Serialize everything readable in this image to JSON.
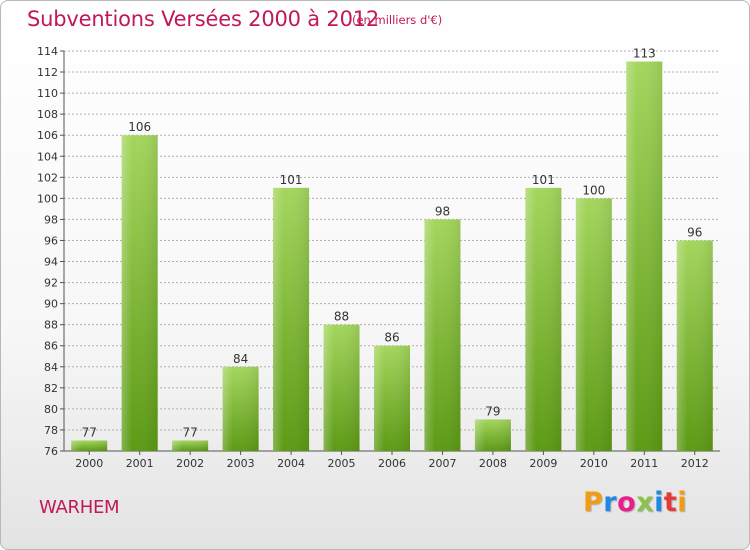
{
  "title": "Subventions Versées 2000 à 2012",
  "subtitle": "(en milliers d'€)",
  "commune": "WARHEM",
  "logo": {
    "letters": [
      "P",
      "r",
      "o",
      "x",
      "i",
      "t",
      "i"
    ],
    "colors": [
      "#f39c12",
      "#1e88e5",
      "#e91e8c",
      "#8bc34a",
      "#1e88e5",
      "#e53935",
      "#f39c12"
    ]
  },
  "colors": {
    "accent": "#c2185b",
    "bar_light": "#a4d65e",
    "bar_dark": "#5c9a14",
    "grid": "#b0b0b0"
  },
  "chart_data": {
    "type": "bar",
    "categories": [
      "2000",
      "2001",
      "2002",
      "2003",
      "2004",
      "2005",
      "2006",
      "2007",
      "2008",
      "2009",
      "2010",
      "2011",
      "2012"
    ],
    "values": [
      77,
      106,
      77,
      84,
      101,
      88,
      86,
      98,
      79,
      101,
      100,
      113,
      96
    ],
    "data_labels": [
      "77",
      "106",
      "77",
      "84",
      "101",
      "88",
      "86",
      "98",
      "79",
      "101",
      "100",
      "113",
      "96"
    ],
    "ylim": [
      76,
      114
    ],
    "yticks": [
      76,
      78,
      80,
      82,
      84,
      86,
      88,
      90,
      92,
      94,
      96,
      98,
      100,
      102,
      104,
      106,
      108,
      110,
      112,
      114
    ],
    "grid": true,
    "legend": "none"
  }
}
